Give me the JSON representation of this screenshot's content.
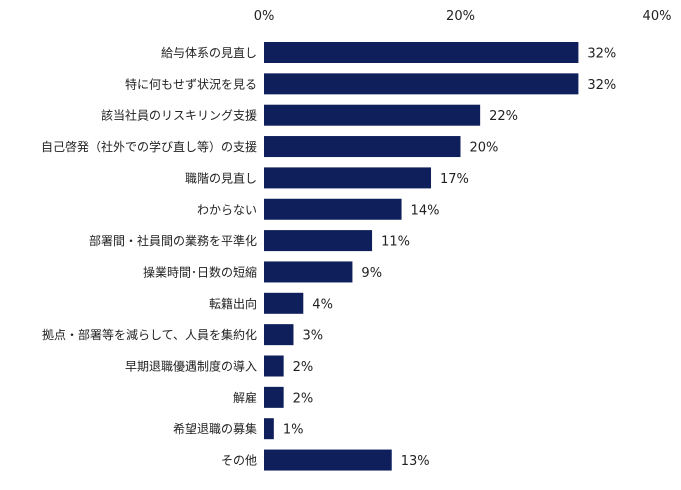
{
  "chart_data": {
    "type": "bar",
    "orientation": "horizontal",
    "categories": [
      "給与体系の見直し",
      "特に何もせず状況を見る",
      "該当社員のリスキリング支援",
      "自己啓発（社外での学び直し等）の支援",
      "職階の見直し",
      "わからない",
      "部署間・社員間の業務を平準化",
      "操業時間･日数の短縮",
      "転籍出向",
      "拠点・部署等を減らして、人員を集約化",
      "早期退職優遇制度の導入",
      "解雇",
      "希望退職の募集",
      "その他"
    ],
    "values": [
      32,
      32,
      22,
      20,
      17,
      14,
      11,
      9,
      4,
      3,
      2,
      2,
      1,
      13
    ],
    "value_labels": [
      "32%",
      "32%",
      "22%",
      "20%",
      "17%",
      "14%",
      "11%",
      "9%",
      "4%",
      "3%",
      "2%",
      "2%",
      "1%",
      "13%"
    ],
    "xlim": [
      0,
      40
    ],
    "ticks": [
      0,
      20,
      40
    ],
    "tick_labels": [
      "0%",
      "20%",
      "40%"
    ],
    "axis_position": "top",
    "grid": false,
    "legend": "none",
    "bar_color": "#0f1f5c"
  }
}
